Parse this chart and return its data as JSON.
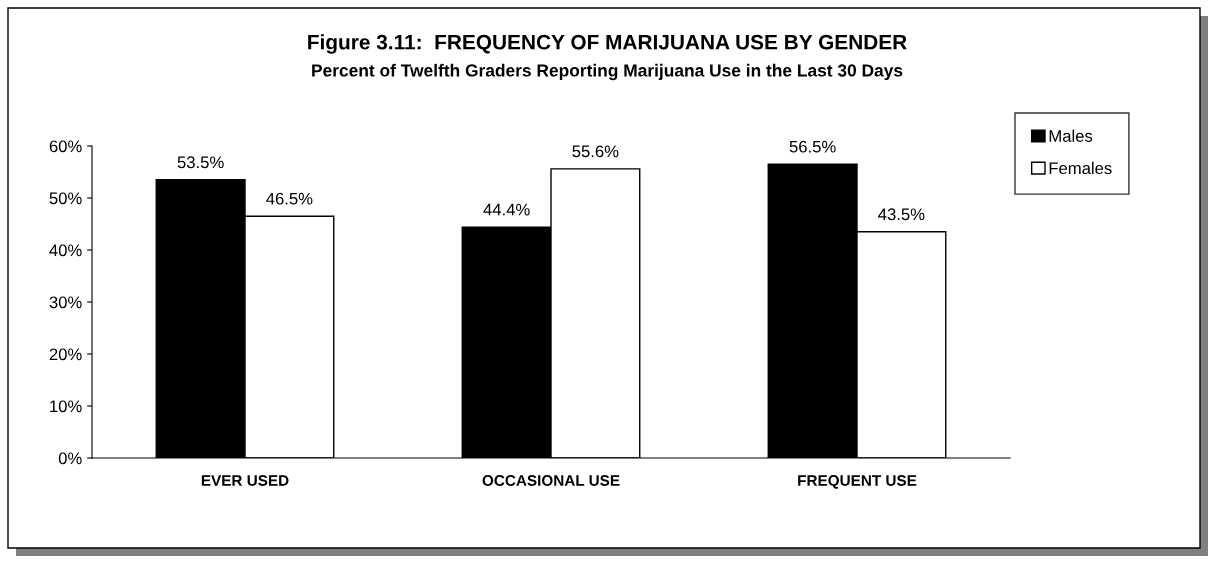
{
  "chart_data": {
    "type": "bar",
    "title": "Figure 3.11:  FREQUENCY OF MARIJUANA USE BY GENDER",
    "subtitle": "Percent of Twelfth Graders Reporting Marijuana Use in the Last 30 Days",
    "categories": [
      "EVER USED",
      "OCCASIONAL USE",
      "FREQUENT USE"
    ],
    "series": [
      {
        "name": "Males",
        "color": "#000000",
        "values": [
          53.5,
          44.4,
          56.5
        ],
        "value_labels": [
          "53.5%",
          "44.4%",
          "56.5%"
        ]
      },
      {
        "name": "Females",
        "color": "#ffffff",
        "values": [
          46.5,
          55.6,
          43.5
        ],
        "value_labels": [
          "46.5%",
          "55.6%",
          "43.5%"
        ]
      }
    ],
    "ylim": [
      0,
      60
    ],
    "yticks": [
      {
        "value": 0,
        "label": "0%"
      },
      {
        "value": 10,
        "label": "10%"
      },
      {
        "value": 20,
        "label": "20%"
      },
      {
        "value": 30,
        "label": "30%"
      },
      {
        "value": 40,
        "label": "40%"
      },
      {
        "value": 50,
        "label": "50%"
      },
      {
        "value": 60,
        "label": "60%"
      }
    ],
    "grid": false,
    "legend": "top right"
  }
}
